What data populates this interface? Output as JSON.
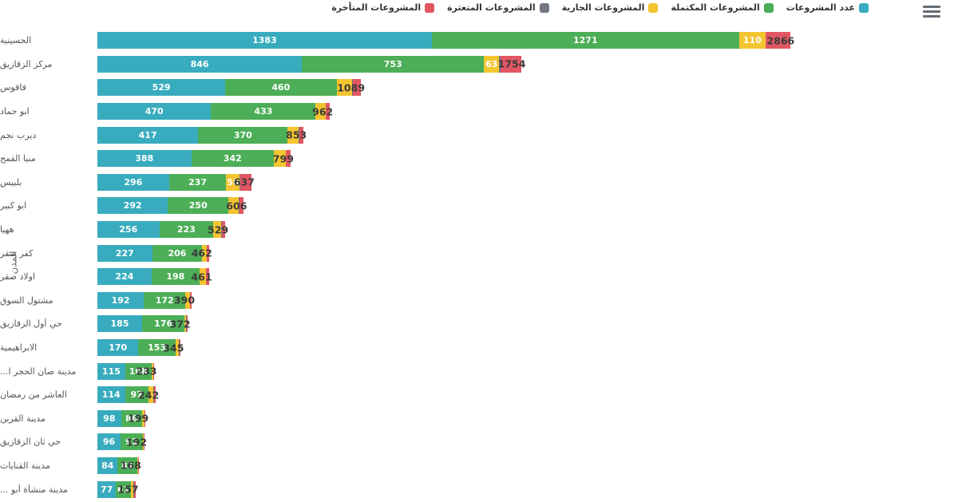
{
  "page": {
    "background": "#ffffff"
  },
  "menu": {
    "icon": "hamburger-icon",
    "color": "#666d74"
  },
  "legend": {
    "position": "top",
    "items": [
      {
        "key": "count",
        "label": "عدد المشروعات",
        "color": "#38acbe"
      },
      {
        "key": "completed",
        "label": "المشروعات المكتملة",
        "color": "#4cae56"
      },
      {
        "key": "ongoing",
        "label": "المشروعات الجارية",
        "color": "#f3c530"
      },
      {
        "key": "stalled",
        "label": "المشروعات المتعثرة",
        "color": "#71787f"
      },
      {
        "key": "delayed",
        "label": "المشروعات المتأخرة",
        "color": "#e25663"
      }
    ]
  },
  "chart_data": {
    "type": "bar",
    "orientation": "horizontal-stacked",
    "title": "",
    "xlabel": "",
    "ylabel": "المدن",
    "legend_position": "top",
    "grid": false,
    "max_total": 2866,
    "categories": [
      "الحسينية",
      "مركز الزقازيق",
      "فاقوس",
      "ابو حماد",
      "ديرب نجم",
      "منيا القمح",
      "بلبيس",
      "ابو كبير",
      "ههيا",
      "كفر صقر",
      "اولاد صقر",
      "مشتول السوق",
      "حي أول الزقازيق",
      "الابراهيمية",
      "مدينة صان الحجر ا...",
      "العاشر من رمضان",
      "مدينة القرين",
      "حي ثان الزقازيق",
      "مدينة القنايات",
      "مدينة منشأة أبو ..."
    ],
    "series": [
      {
        "key": "count",
        "name": "عدد المشروعات",
        "color": "#38acbe",
        "values": [
          1383,
          846,
          529,
          470,
          417,
          388,
          296,
          292,
          256,
          227,
          224,
          192,
          185,
          170,
          115,
          114,
          98,
          96,
          84,
          77
        ]
      },
      {
        "key": "completed",
        "name": "المشروعات المكتملة",
        "color": "#4cae56",
        "values": [
          1271,
          753,
          460,
          433,
          370,
          342,
          237,
          250,
          223,
          206,
          198,
          172,
          176,
          153,
          108,
          97,
          86,
          91,
          81,
          61
        ]
      },
      {
        "key": "ongoing",
        "name": "المشروعات الجارية",
        "color": "#f3c530",
        "values": [
          110,
          63,
          65,
          40,
          45,
          48,
          56,
          44,
          34,
          20,
          26,
          18,
          7,
          15,
          7,
          20,
          10,
          3,
          2,
          12
        ]
      },
      {
        "key": "stalled",
        "name": "المشروعات المتعثرة",
        "color": "#71787f",
        "values": [
          0,
          5,
          4,
          2,
          2,
          2,
          3,
          2,
          2,
          1,
          2,
          1,
          1,
          1,
          1,
          2,
          1,
          1,
          0,
          2
        ]
      },
      {
        "key": "delayed",
        "name": "المشروعات المتأخرة",
        "color": "#e25663",
        "values": [
          102,
          87,
          31,
          17,
          19,
          19,
          45,
          18,
          14,
          8,
          11,
          7,
          3,
          6,
          2,
          9,
          4,
          1,
          1,
          5
        ]
      }
    ],
    "totals": [
      2866,
      1754,
      1089,
      962,
      853,
      799,
      637,
      606,
      529,
      462,
      461,
      390,
      372,
      345,
      233,
      242,
      199,
      192,
      168,
      157
    ],
    "labels": {
      "count_labels_visible": "all",
      "completed_labels_visible": "all",
      "ongoing_label_rows": [
        0,
        1,
        6
      ],
      "totals_visible": "all",
      "segment_label_color": "#ffffff",
      "total_label_color": "#3a3a3a"
    },
    "note": "ongoing/stalled/delayed per-row splits estimated from pixel widths; labeled values in image: ongoing 110, 63, 56 and all count/completed/total labels"
  }
}
